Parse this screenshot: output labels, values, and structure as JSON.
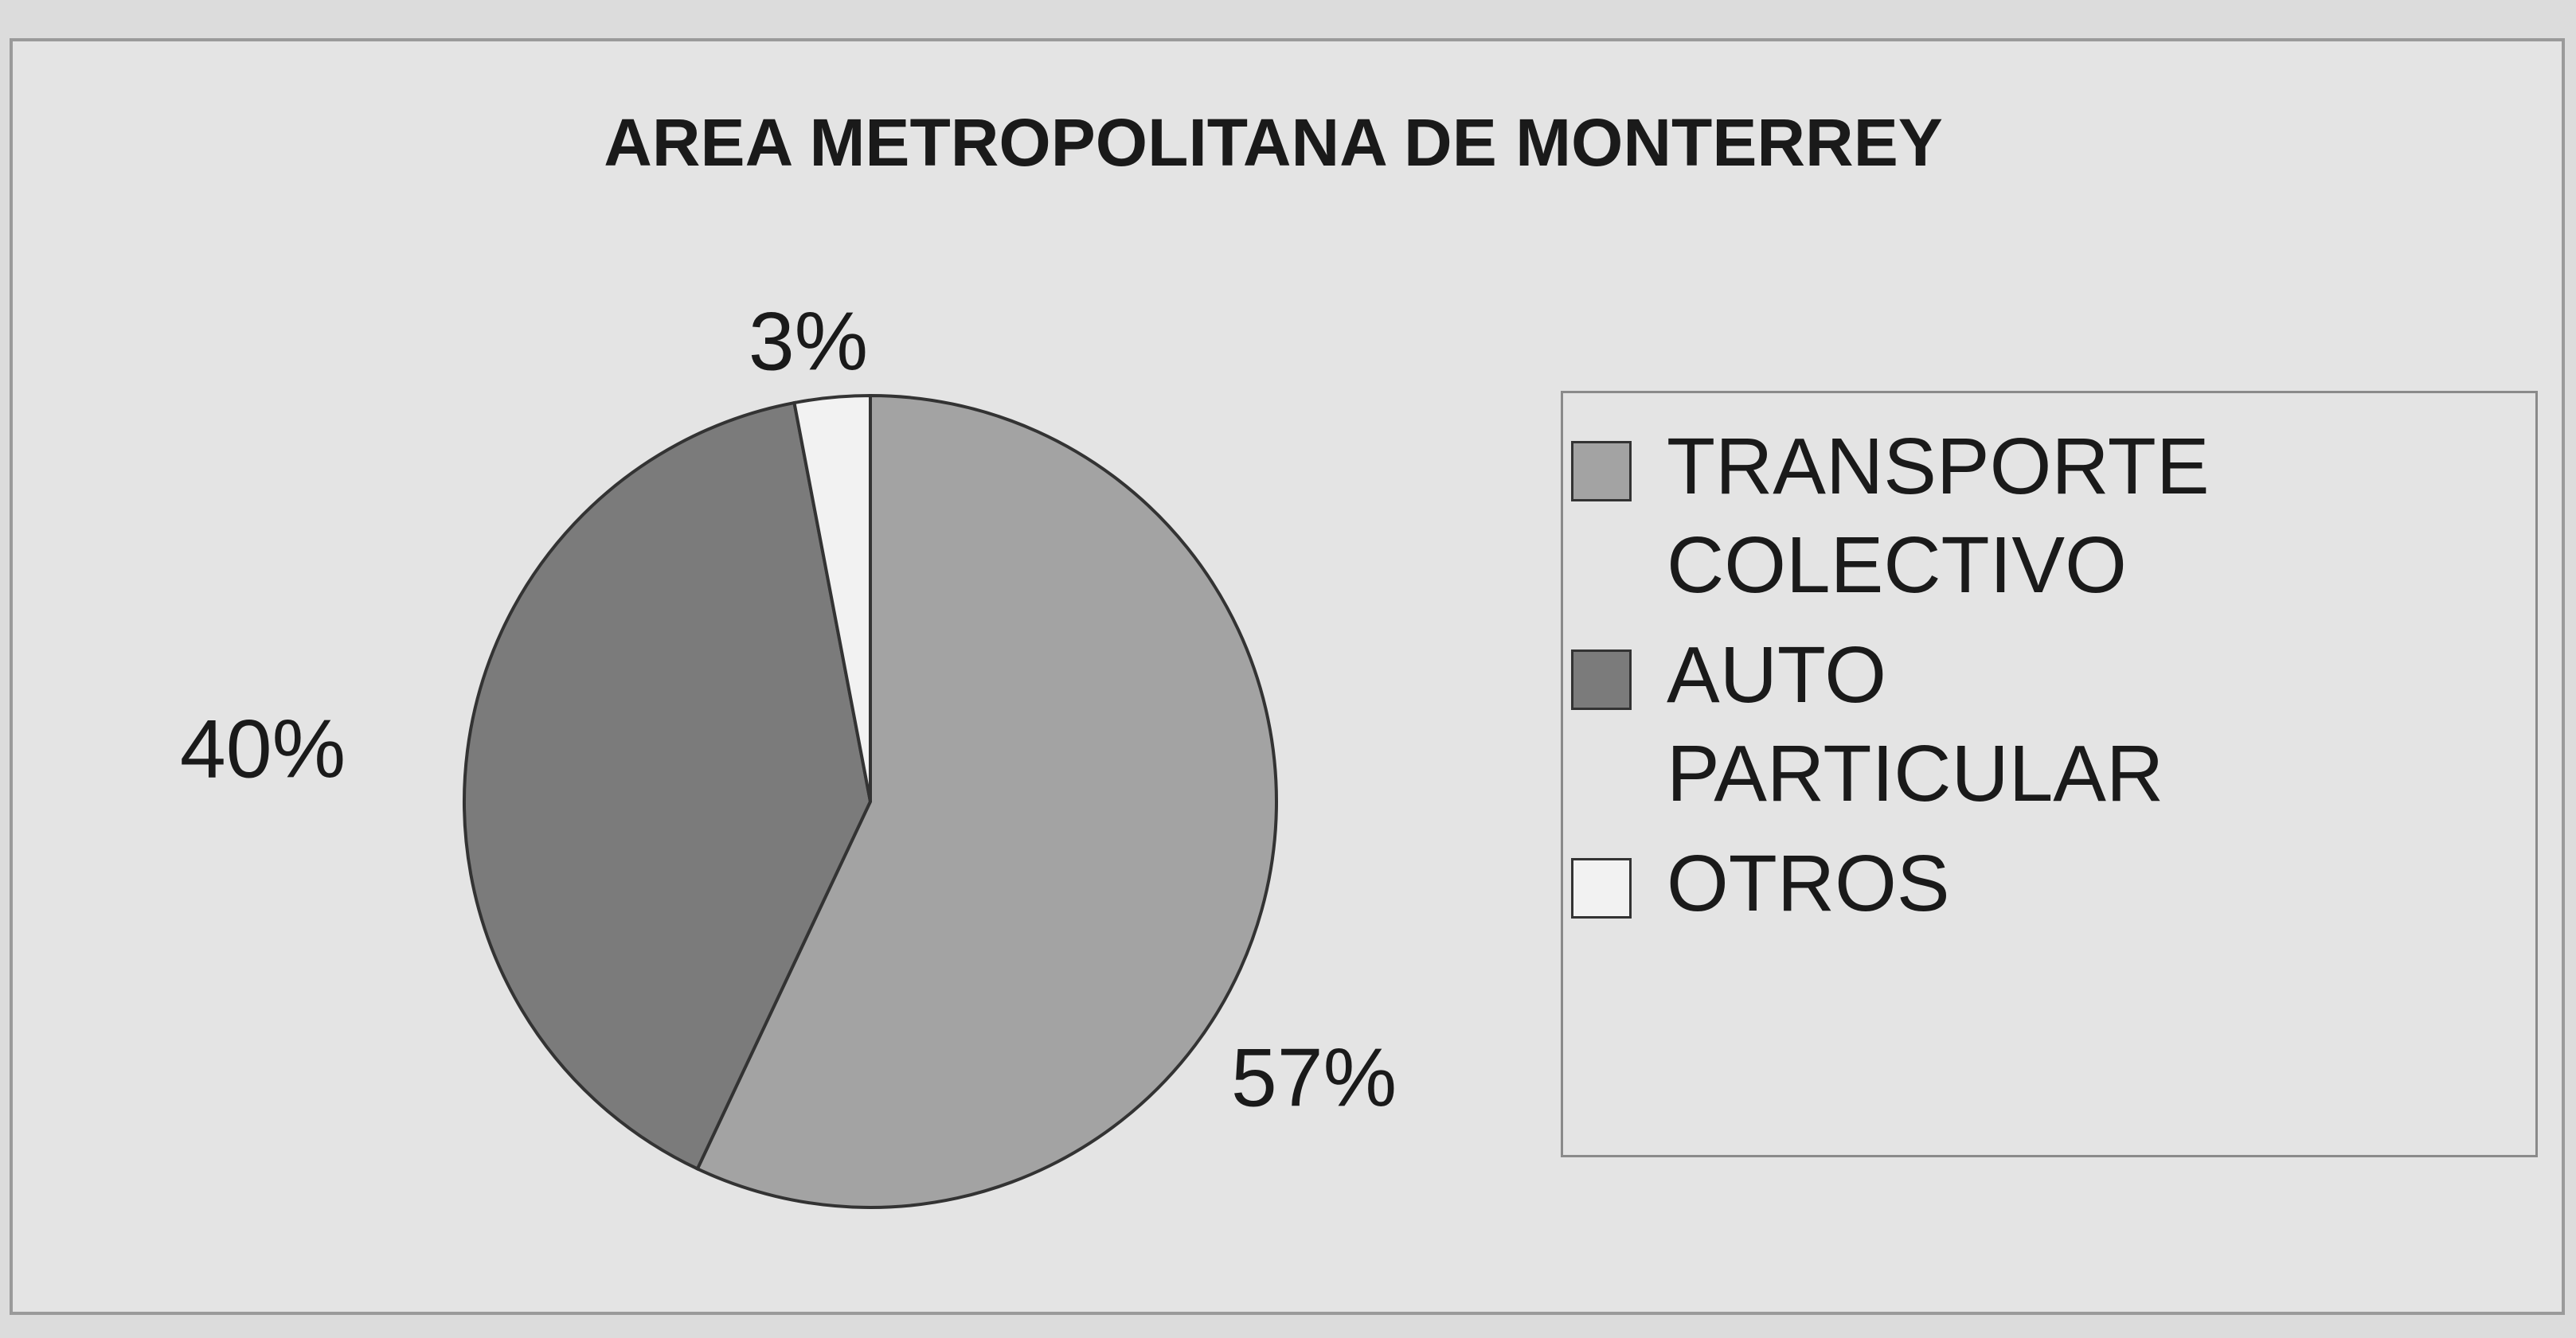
{
  "chart_data": {
    "type": "pie",
    "title": "AREA METROPOLITANA DE MONTERREY",
    "categories": [
      "TRANSPORTE COLECTIVO",
      "AUTO PARTICULAR",
      "OTROS"
    ],
    "values": [
      57,
      40,
      3
    ],
    "value_labels": [
      "57%",
      "40%",
      "3%"
    ],
    "colors": [
      "#a3a3a3",
      "#7b7b7b",
      "#f2f2f2"
    ],
    "legend": "right"
  }
}
